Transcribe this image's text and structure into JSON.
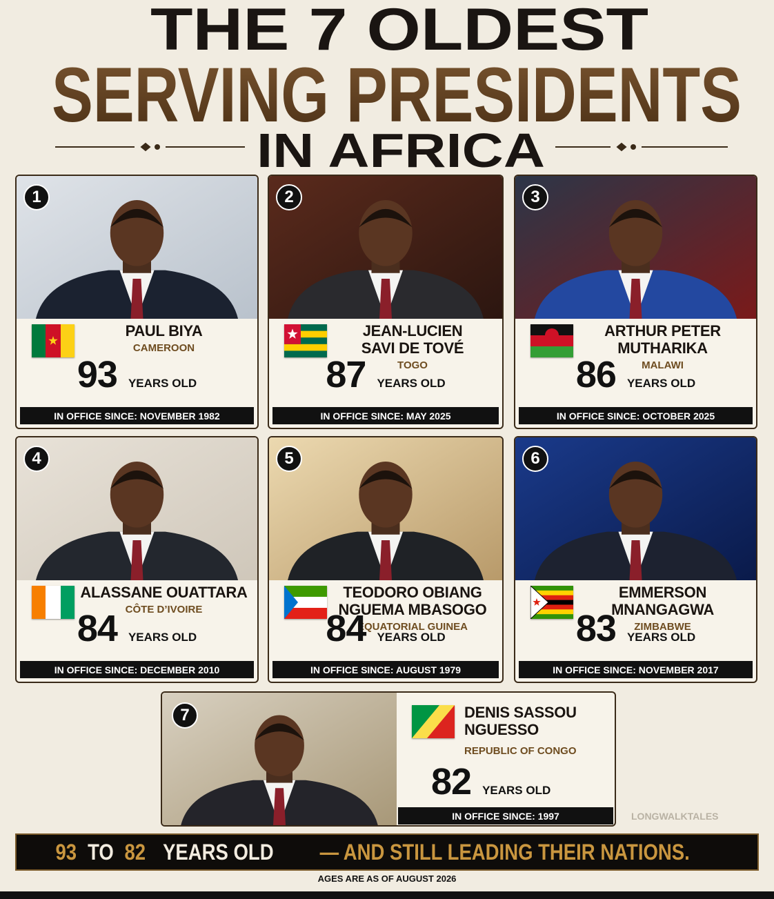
{
  "header": {
    "line1": "THE 7 OLDEST",
    "line2": "SERVING PRESIDENTS",
    "line3": "IN AFRICA"
  },
  "presidents": [
    {
      "rank": 1,
      "name": [
        "PAUL BIYA"
      ],
      "country": "CAMEROON",
      "age": 93,
      "age_unit": "YEARS OLD",
      "in_office": "IN OFFICE SINCE: NOVEMBER 1982"
    },
    {
      "rank": 2,
      "name": [
        "JEAN-LUCIEN",
        "SAVI DE TOVÉ"
      ],
      "country": "TOGO",
      "age": 87,
      "age_unit": "YEARS OLD",
      "in_office": "IN OFFICE SINCE: MAY 2025"
    },
    {
      "rank": 3,
      "name": [
        "ARTHUR PETER",
        "MUTHARIKA"
      ],
      "country": "MALAWI",
      "age": 86,
      "age_unit": "YEARS OLD",
      "in_office": "IN OFFICE SINCE: OCTOBER 2025"
    },
    {
      "rank": 4,
      "name": [
        "ALASSANE OUATTARA"
      ],
      "country": "CÔTE D’IVOIRE",
      "age": 84,
      "age_unit": "YEARS OLD",
      "in_office": "IN OFFICE SINCE: DECEMBER 2010"
    },
    {
      "rank": 5,
      "name": [
        "TEODORO OBIANG",
        "NGUEMA MBASOGO"
      ],
      "country": "EQUATORIAL GUINEA",
      "age": 84,
      "age_unit": "YEARS OLD",
      "in_office": "IN OFFICE SINCE: AUGUST 1979"
    },
    {
      "rank": 6,
      "name": [
        "EMMERSON",
        "MNANGAGWA"
      ],
      "country": "ZIMBABWE",
      "age": 83,
      "age_unit": "YEARS OLD",
      "in_office": "IN OFFICE SINCE: NOVEMBER 2017"
    },
    {
      "rank": 7,
      "name": [
        "DENIS SASSOU",
        "NGUESSO"
      ],
      "country": "REPUBLIC OF CONGO",
      "age": 82,
      "age_unit": "YEARS OLD",
      "in_office": "IN OFFICE SINCE: 1997"
    }
  ],
  "watermark": "LONGWALKTALES",
  "footer": {
    "banner": [
      "93",
      "TO",
      "82",
      "YEARS OLD",
      "— AND STILL LEADING THEIR NATIONS."
    ],
    "note": "AGES ARE AS OF AUGUST 2026"
  }
}
